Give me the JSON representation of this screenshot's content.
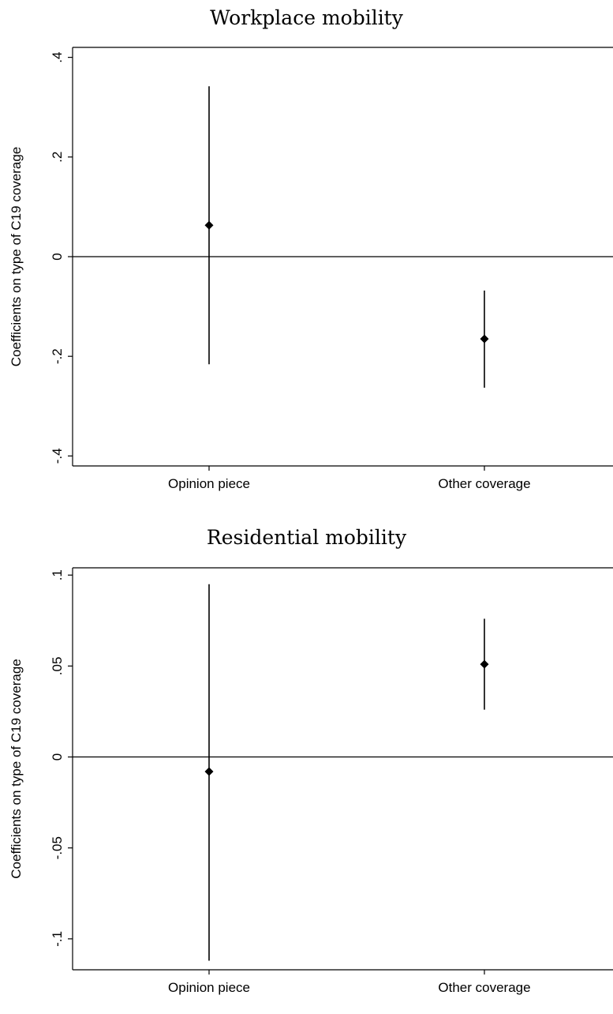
{
  "chart_data": [
    {
      "type": "scatter",
      "title": "Workplace mobility",
      "ylabel": "Coefficients on type of C19 coverage",
      "xlabel": "",
      "categories": [
        "Opinion piece",
        "Other coverage"
      ],
      "estimates": [
        0.063,
        -0.165
      ],
      "ci_lower": [
        -0.216,
        -0.263
      ],
      "ci_upper": [
        0.342,
        -0.068
      ],
      "yticks": [
        -0.4,
        -0.2,
        0,
        0.2,
        0.4
      ],
      "ytick_labels": [
        "-.4",
        "-.2",
        "0",
        ".2",
        ".4"
      ],
      "ylim": [
        -0.42,
        0.42
      ],
      "reference_line": 0,
      "grid": false
    },
    {
      "type": "scatter",
      "title": "Residential mobility",
      "ylabel": "Coefficients on type of C19 coverage",
      "xlabel": "",
      "categories": [
        "Opinion piece",
        "Other coverage"
      ],
      "estimates": [
        -0.008,
        0.051
      ],
      "ci_lower": [
        -0.112,
        0.026
      ],
      "ci_upper": [
        0.095,
        0.076
      ],
      "yticks": [
        -0.1,
        -0.05,
        0,
        0.05,
        0.1
      ],
      "ytick_labels": [
        "-.1",
        "-.05",
        "0",
        ".05",
        ".1"
      ],
      "ylim": [
        -0.117,
        0.104
      ],
      "reference_line": 0,
      "grid": false
    }
  ]
}
